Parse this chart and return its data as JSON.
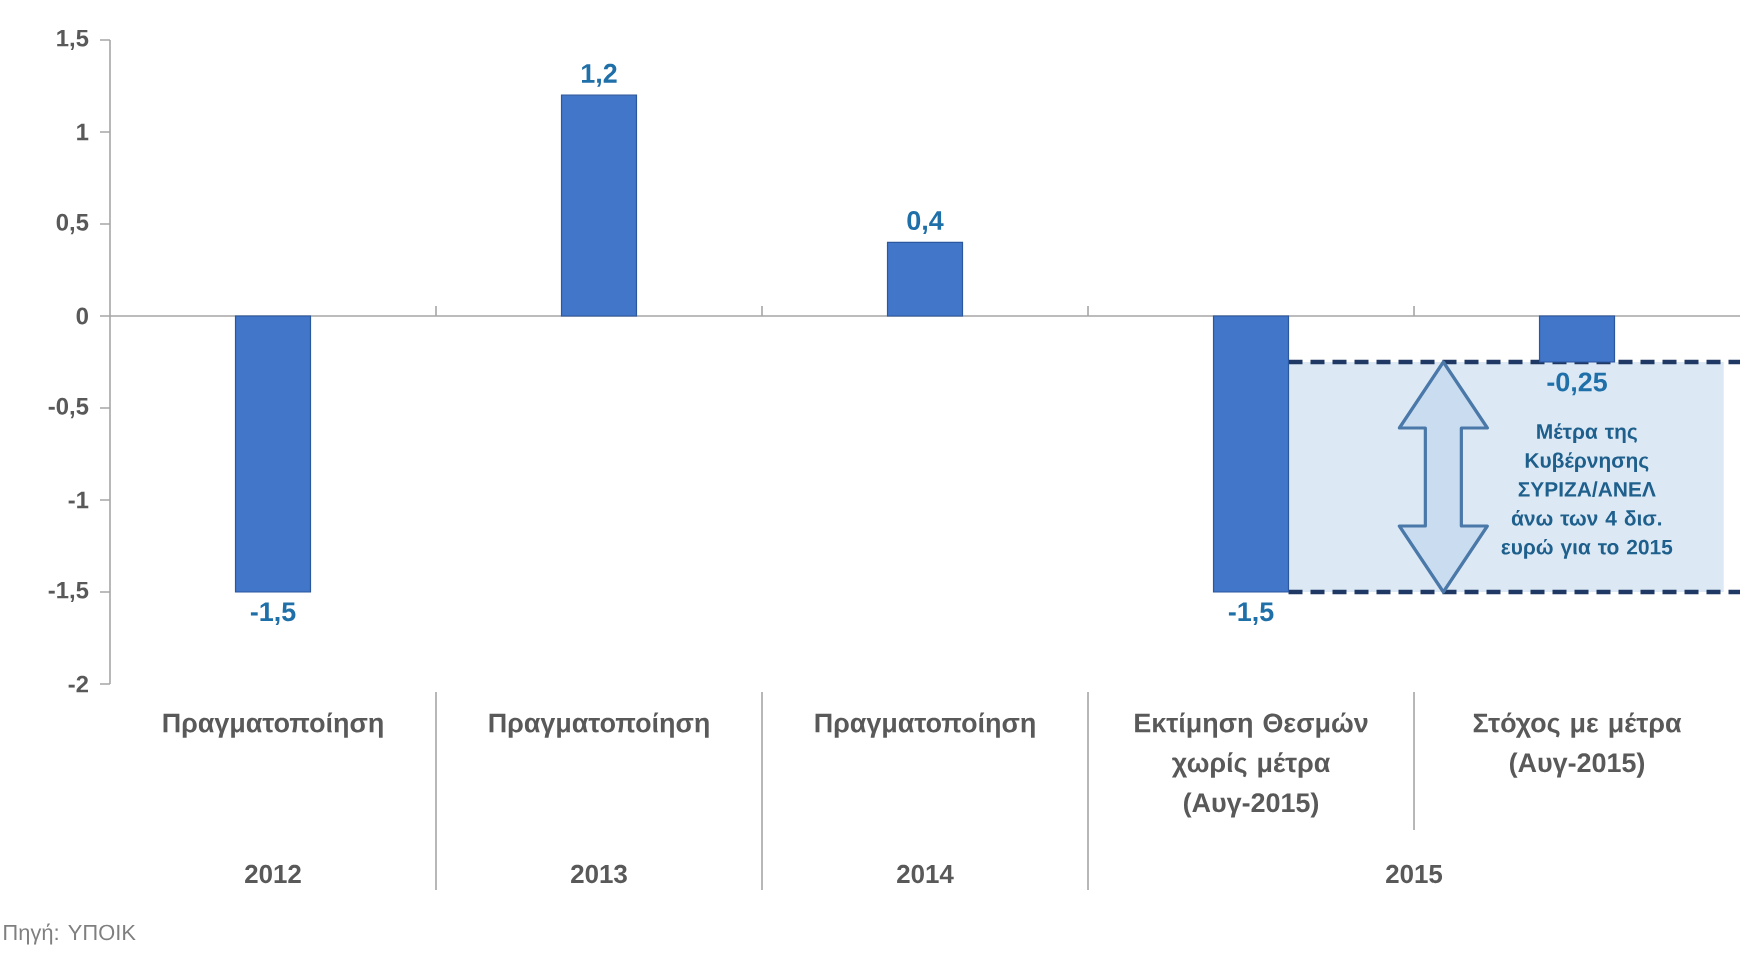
{
  "chart_data": {
    "type": "bar",
    "categories": [
      "Πραγματοποίηση",
      "Πραγματοποίηση",
      "Πραγματοποίηση",
      "Εκτίμηση Θεσμών χωρίς μέτρα (Αυγ-2015)",
      "Στόχος με μέτρα (Αυγ-2015)"
    ],
    "values": [
      -1.5,
      1.2,
      0.4,
      -1.5,
      -0.25
    ],
    "value_labels": [
      "-1,5",
      "1,2",
      "0,4",
      "-1,5",
      "-0,25"
    ],
    "color": "#4276c9",
    "ylim": [
      -2,
      1.5
    ],
    "yticks": [
      {
        "value": 1.5,
        "label": "1,5"
      },
      1,
      {
        "value": 0.5,
        "label": "0,5"
      },
      0,
      {
        "value": -0.5,
        "label": "-0,5"
      },
      -1,
      {
        "value": -1.5,
        "label": "-1,5"
      },
      -2
    ],
    "bands": [
      {
        "axis": "y",
        "from": -1.5,
        "to": -0.25,
        "label": "Μέτρα της Κυβέρνησης ΣΥΡΙΖΑ/ΑΝΕΛ άνω των 4 δισ. ευρώ για το 2015",
        "color": "#dce9f5"
      }
    ],
    "ref_lines": [
      {
        "axis": "y",
        "value": -0.25,
        "color": "#1f3864",
        "line_style": "dashed"
      },
      {
        "axis": "y",
        "value": -1.5,
        "color": "#1f3864",
        "line_style": "dashed"
      }
    ],
    "annotations": [
      "2012",
      "2013",
      "2014",
      "2015",
      "Πηγή: ΥΠΟΙΚ"
    ]
  }
}
